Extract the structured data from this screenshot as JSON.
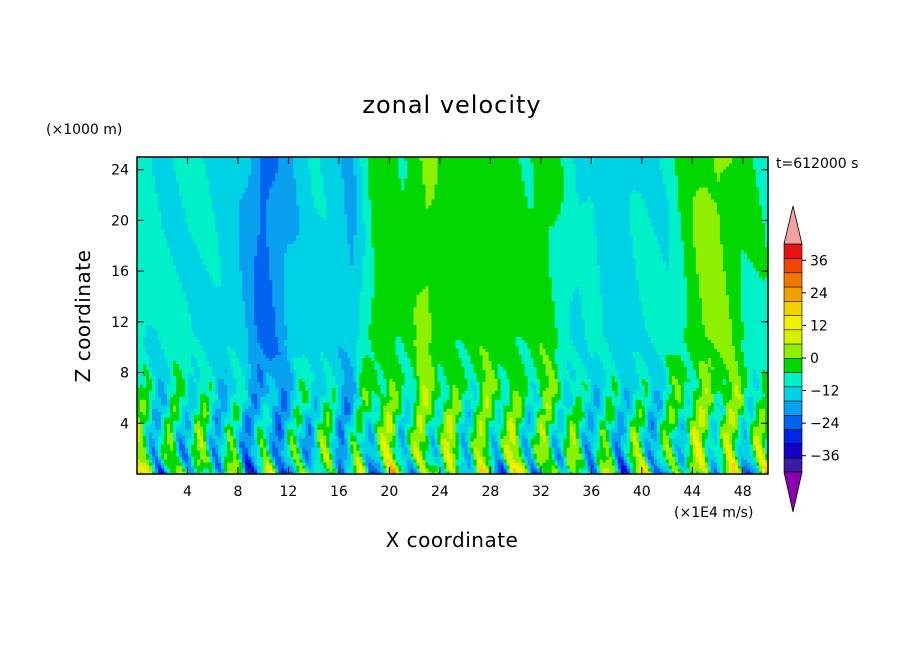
{
  "chart_data": {
    "type": "heatmap",
    "title": "zonal velocity",
    "xlabel": "X coordinate",
    "ylabel": "Z coordinate",
    "y_units": "(×1000 m)",
    "colorbar_units": "(×1E4 m/s)",
    "time_label": "t=612000 s",
    "xlim": [
      0,
      50
    ],
    "ylim": [
      0,
      25
    ],
    "x_ticks": [
      4,
      8,
      12,
      16,
      20,
      24,
      28,
      32,
      36,
      40,
      44,
      48
    ],
    "y_ticks": [
      4,
      8,
      12,
      16,
      20,
      24
    ],
    "colorbar": {
      "min": -42,
      "max": 42,
      "step": 6,
      "ticks": [
        36,
        24,
        12,
        0,
        -12,
        -24,
        -36
      ],
      "extend": "both",
      "colors": [
        "#3a1ca8",
        "#1400c8",
        "#0024e8",
        "#0064f0",
        "#0aa0f0",
        "#00d2e6",
        "#00f0c8",
        "#00d800",
        "#8cf000",
        "#d4f000",
        "#f0f000",
        "#f0d000",
        "#f0a000",
        "#f07800",
        "#f04600",
        "#e61414"
      ],
      "over_color": "#f5a0a0",
      "under_color": "#8c00b4"
    },
    "x_profile": [
      [
        0,
        -3
      ],
      [
        2,
        -6
      ],
      [
        4,
        -5
      ],
      [
        6,
        -7
      ],
      [
        8,
        -10
      ],
      [
        9,
        -14
      ],
      [
        10,
        -21
      ],
      [
        11,
        -17
      ],
      [
        12,
        -12
      ],
      [
        14,
        -7
      ],
      [
        16,
        -9
      ],
      [
        17,
        -13
      ],
      [
        18,
        -4
      ],
      [
        19,
        4
      ],
      [
        20,
        3
      ],
      [
        21,
        1
      ],
      [
        22,
        4
      ],
      [
        23,
        7
      ],
      [
        24,
        3
      ],
      [
        26,
        2
      ],
      [
        28,
        3
      ],
      [
        30,
        2
      ],
      [
        31,
        1
      ],
      [
        32,
        3
      ],
      [
        33,
        1
      ],
      [
        34,
        -3
      ],
      [
        35,
        -7
      ],
      [
        36,
        -4
      ],
      [
        37,
        -8
      ],
      [
        38,
        -10
      ],
      [
        40,
        -6
      ],
      [
        42,
        -5
      ],
      [
        44,
        4
      ],
      [
        45,
        7
      ],
      [
        46,
        8
      ],
      [
        47,
        5
      ],
      [
        48,
        1
      ],
      [
        50,
        -2
      ]
    ]
  }
}
